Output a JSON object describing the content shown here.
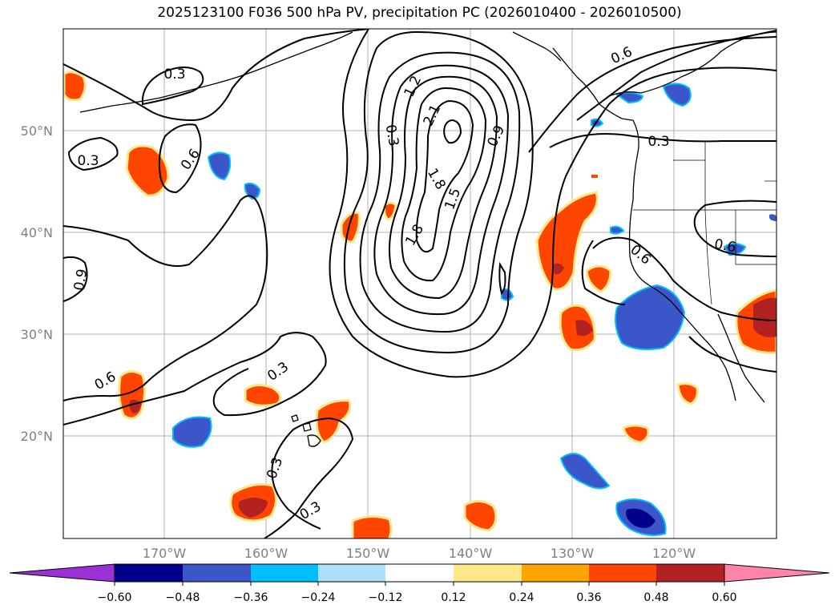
{
  "title": "2025123100 F036 500 hPa PV, precipitation PC (2026010400 - 2026010500)",
  "map": {
    "lat_labels": [
      "50°N",
      "40°N",
      "30°N",
      "20°N"
    ],
    "lon_labels": [
      "170°W",
      "160°W",
      "150°W",
      "140°W",
      "130°W",
      "120°W"
    ],
    "pv_contour_labels": [
      "0.3",
      "0.3",
      "0.6",
      "0.9",
      "0.6",
      "0.3",
      "0.3",
      "0.3",
      "1.2",
      "2.1",
      "0.3",
      "1.8",
      "1.5",
      "0.9",
      "1.8",
      "0.6",
      "0.3",
      "0.6",
      "0.6"
    ],
    "colors": {
      "neg_extreme": "#9b30d6",
      "neg_06": "#00008b",
      "neg_048": "#3a56c8",
      "neg_036": "#00bfff",
      "neg_024": "#b0e0f8",
      "neutral": "#ffffff",
      "pos_012": "#ffe88a",
      "pos_024": "#ffa500",
      "pos_036": "#ff4500",
      "pos_048": "#b22222",
      "pos_extreme": "#ff85a8"
    }
  },
  "colorbar": {
    "tick_labels": [
      "−0.60",
      "−0.48",
      "−0.36",
      "−0.24",
      "−0.12",
      "0.12",
      "0.24",
      "0.36",
      "0.48",
      "0.60"
    ]
  }
}
